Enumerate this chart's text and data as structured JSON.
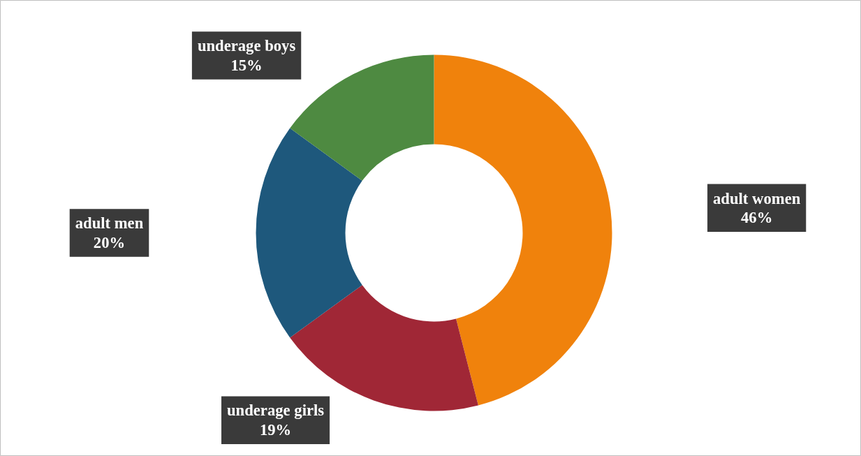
{
  "chart_data": {
    "type": "donut",
    "categories": [
      "adult women",
      "underage girls",
      "adult men",
      "underage boys"
    ],
    "values": [
      46,
      19,
      20,
      15
    ],
    "colors": [
      "#f0820c",
      "#a02736",
      "#1e587c",
      "#4e8a41"
    ],
    "value_labels": [
      "46%",
      "19%",
      "20%",
      "15%"
    ]
  }
}
